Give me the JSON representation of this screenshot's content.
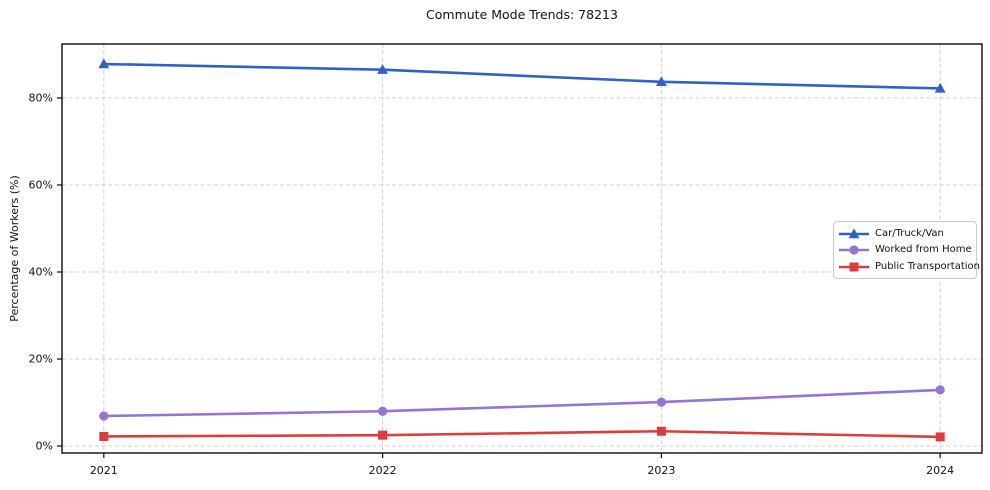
{
  "chart_data": {
    "type": "line",
    "title": "Commute Mode Trends: 78213",
    "xlabel": "",
    "ylabel": "Percentage of Workers (%)",
    "categories": [
      "2021",
      "2022",
      "2023",
      "2024"
    ],
    "series": [
      {
        "name": "Car/Truck/Van",
        "color": "#2e62c3",
        "marker": "triangle",
        "values": [
          87.8,
          86.5,
          83.7,
          82.2
        ]
      },
      {
        "name": "Worked from Home",
        "color": "#9674d4",
        "marker": "circle",
        "values": [
          6.9,
          8.0,
          10.1,
          12.9
        ]
      },
      {
        "name": "Public Transportation",
        "color": "#dd3c3c",
        "marker": "square",
        "values": [
          2.2,
          2.5,
          3.4,
          2.1
        ]
      }
    ],
    "y_ticks": [
      {
        "value": 0,
        "label": "0%"
      },
      {
        "value": 20,
        "label": "20%"
      },
      {
        "value": 40,
        "label": "40%"
      },
      {
        "value": 60,
        "label": "60%"
      },
      {
        "value": 80,
        "label": "80%"
      }
    ],
    "ylim": [
      -1.6,
      92.4
    ],
    "x_margin": 0.15,
    "grid": true,
    "legend_position": "center-right",
    "background_color": "#ffffff",
    "grid_color": "#cfcfcf"
  }
}
